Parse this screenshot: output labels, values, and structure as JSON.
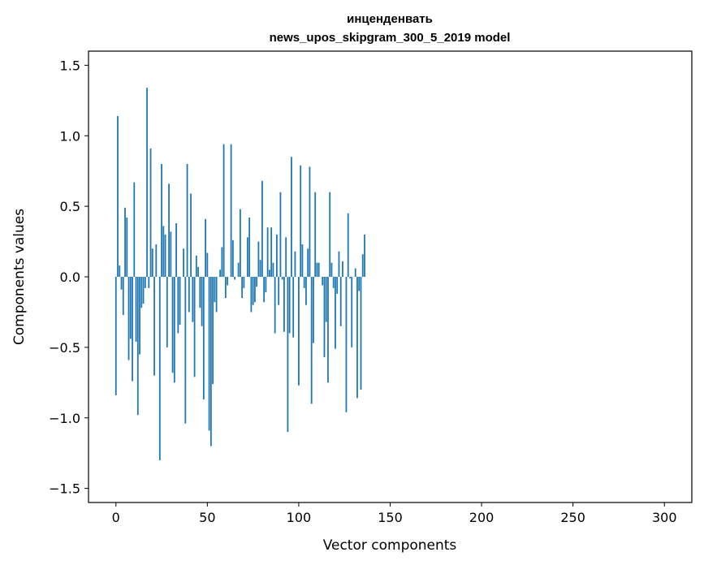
{
  "chart_data": {
    "type": "bar",
    "title": "инценденвать",
    "subtitle": "news_upos_skipgram_300_5_2019 model",
    "xlabel": "Vector components",
    "ylabel": "Components values",
    "xlim": [
      -15,
      315
    ],
    "ylim": [
      -1.6,
      1.6
    ],
    "xticks": [
      0,
      50,
      100,
      150,
      200,
      250,
      300
    ],
    "xtick_labels": [
      "0",
      "50",
      "100",
      "150",
      "200",
      "250",
      "300"
    ],
    "yticks": [
      1.5,
      1.0,
      0.5,
      0.0,
      -0.5,
      -1.0,
      -1.5
    ],
    "ytick_labels": [
      "1.5",
      "1.0",
      "0.5",
      "0.0",
      "−0.5",
      "−1.0",
      "−1.5"
    ],
    "color": "#1f77b4",
    "values": [
      -0.84,
      1.14,
      0.08,
      -0.09,
      -0.27,
      0.49,
      0.42,
      -0.59,
      -0.44,
      -0.74,
      0.67,
      -0.46,
      -0.98,
      -0.55,
      -0.22,
      -0.19,
      -0.08,
      1.34,
      -0.08,
      0.91,
      0.2,
      -0.7,
      0.23,
      0.0,
      -1.3,
      0.8,
      0.36,
      0.3,
      -0.5,
      0.66,
      0.32,
      -0.68,
      -0.75,
      0.38,
      -0.4,
      -0.34,
      0.0,
      0.2,
      -1.04,
      0.8,
      -0.25,
      0.59,
      -0.32,
      -0.71,
      0.15,
      0.07,
      -0.22,
      -0.35,
      -0.87,
      0.41,
      0.17,
      -1.09,
      -1.2,
      -0.76,
      -0.18,
      -0.25,
      0.0,
      0.05,
      0.21,
      0.94,
      -0.15,
      -0.06,
      0.0,
      0.94,
      0.26,
      -0.02,
      0.0,
      0.1,
      0.48,
      -0.15,
      -0.08,
      0.0,
      0.28,
      0.42,
      -0.25,
      -0.2,
      -0.18,
      -0.07,
      0.25,
      0.12,
      0.68,
      -0.18,
      -0.11,
      0.35,
      0.05,
      0.35,
      0.1,
      -0.4,
      0.3,
      -0.2,
      0.6,
      -0.02,
      -0.39,
      0.28,
      -1.1,
      -0.4,
      0.85,
      -0.43,
      0.18,
      0.0,
      -0.77,
      0.79,
      0.23,
      -0.08,
      -0.2,
      0.2,
      0.78,
      -0.9,
      -0.47,
      0.6,
      0.1,
      0.1,
      0.0,
      -0.06,
      -0.57,
      -0.32,
      -0.75,
      0.6,
      0.1,
      -0.08,
      -0.51,
      -0.12,
      0.18,
      -0.35,
      0.11,
      0.0,
      -0.96,
      0.45,
      -0.01,
      -0.5,
      0.0,
      0.06,
      -0.86,
      -0.1,
      -0.8,
      0.16,
      0.3,
      0.0,
      0.0,
      0.0,
      0.0,
      0.0,
      0.0,
      0.0,
      0.0,
      0.0,
      0.0,
      0.0,
      0.0,
      0.0,
      0.0,
      0.0,
      0.0,
      0.0,
      0.0,
      0.0,
      0.0,
      0.0,
      0.0,
      0.0,
      0.0,
      0.0,
      0.0,
      0.0,
      0.0,
      0.0,
      0.0,
      0.0,
      0.0,
      0.0,
      0.0,
      0.0,
      0.0,
      0.0,
      0.0,
      0.0,
      0.0,
      0.0,
      0.0,
      0.0,
      0.0,
      0.0,
      0.0,
      0.0,
      0.0,
      0.0,
      0.0,
      0.0,
      0.0,
      0.0,
      0.0,
      0.0,
      0.0,
      0.0,
      0.0,
      0.0,
      0.0,
      0.0,
      0.0,
      0.0,
      0.0,
      0.0,
      0.0,
      0.0,
      0.0,
      0.0,
      0.0,
      0.0,
      0.0,
      0.0,
      0.0,
      0.0,
      0.0,
      0.0,
      0.0,
      0.0,
      0.0,
      0.0,
      0.0,
      0.0,
      0.0,
      0.0,
      0.0,
      0.0,
      0.0,
      0.0,
      0.0,
      0.0,
      0.0,
      0.0,
      0.0,
      0.0,
      0.0,
      0.0,
      0.0,
      0.0,
      0.0,
      0.0,
      0.0,
      0.0,
      0.0,
      0.0,
      0.0,
      0.0,
      0.0,
      0.0,
      0.0,
      0.0,
      0.0,
      0.0,
      0.0,
      0.0,
      0.0,
      0.0,
      0.0,
      0.0,
      0.0,
      0.0,
      0.0,
      0.0,
      0.0,
      0.0,
      0.0,
      0.0,
      0.0,
      0.0,
      0.0,
      0.0,
      0.0,
      0.0,
      0.0,
      0.0,
      0.0,
      0.0,
      0.0,
      0.0,
      0.0,
      0.0,
      0.0,
      0.0,
      0.0,
      0.0,
      0.0,
      0.0,
      0.0,
      0.0,
      0.0,
      0.0,
      0.0,
      0.0,
      0.0,
      0.0,
      0.0,
      0.0,
      0.0,
      0.0,
      0.0,
      0.0,
      0.0,
      0.0,
      0.0,
      0.0,
      0.0,
      0.0,
      0.0,
      0.0,
      0.0,
      0.0
    ]
  }
}
